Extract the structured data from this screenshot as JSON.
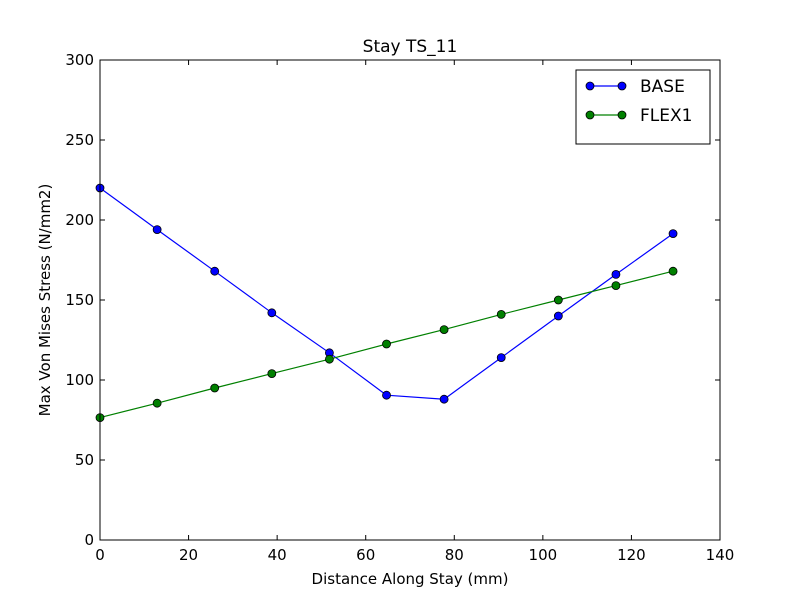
{
  "chart_data": {
    "type": "line",
    "title": "Stay TS_11",
    "xlabel": "Distance Along Stay (mm)",
    "ylabel": "Max Von Mises Stress (N/mm2)",
    "xlim": [
      0,
      140
    ],
    "ylim": [
      0,
      300
    ],
    "xticks": [
      0,
      20,
      40,
      60,
      80,
      100,
      120,
      140
    ],
    "yticks": [
      0,
      50,
      100,
      150,
      200,
      250,
      300
    ],
    "grid": false,
    "legend_position": "top-right",
    "series": [
      {
        "name": "BASE",
        "color": "#0000ff",
        "x": [
          0,
          12.9,
          25.9,
          38.8,
          51.8,
          64.7,
          77.7,
          90.6,
          103.5,
          116.5,
          129.4
        ],
        "y": [
          220,
          194,
          168,
          142,
          117,
          90.5,
          88,
          114,
          140,
          166,
          191.5
        ]
      },
      {
        "name": "FLEX1",
        "color": "#008000",
        "x": [
          0,
          12.9,
          25.9,
          38.8,
          51.8,
          64.7,
          77.7,
          90.6,
          103.5,
          116.5,
          129.4
        ],
        "y": [
          76.5,
          85.5,
          95,
          104,
          113,
          122.5,
          131.5,
          141,
          150,
          159,
          168
        ]
      }
    ]
  }
}
